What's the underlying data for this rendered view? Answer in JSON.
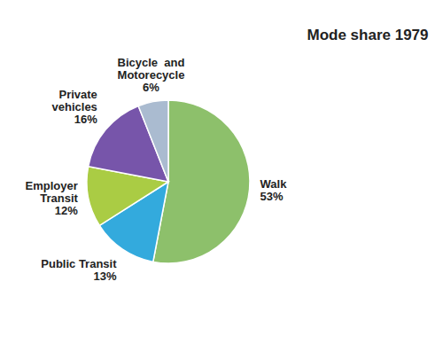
{
  "chart_data": {
    "type": "pie",
    "title": "Mode share 1979",
    "categories": [
      "Walk\n53%",
      "Public Transit\n13%",
      "Employer\nTransit\n12%",
      "Private\nvehicles\n16%",
      "Bicycle  and\nMotorecycle\n6%"
    ],
    "values": [
      53,
      13,
      12,
      16,
      6
    ],
    "colors": [
      "#8DC06B",
      "#33AADD",
      "#AACC44",
      "#7755AA",
      "#AABBD0"
    ]
  }
}
